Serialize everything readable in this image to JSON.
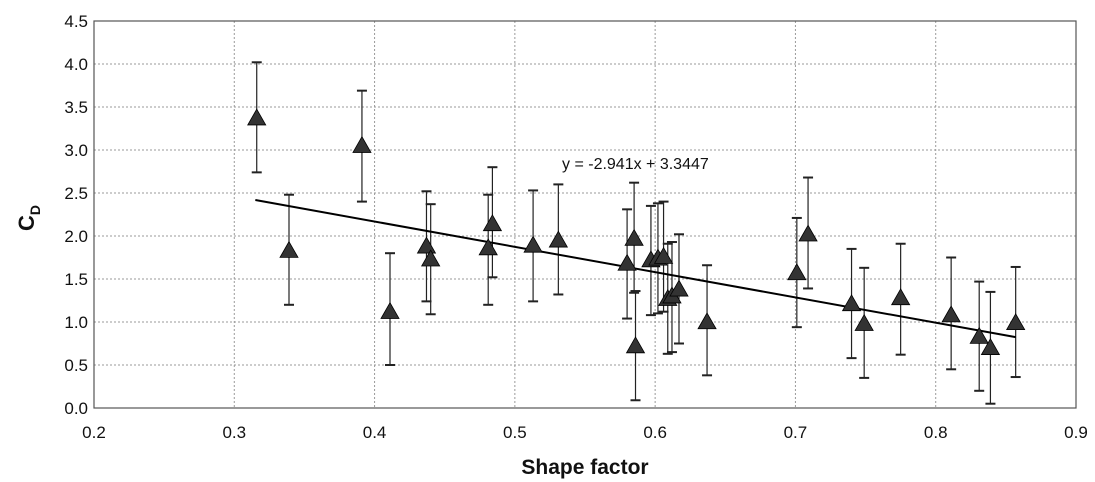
{
  "chart_data": {
    "type": "scatter",
    "xlabel": "Shape factor",
    "ylabel_main": "C",
    "ylabel_sub": "D",
    "xlim": [
      0.2,
      0.9
    ],
    "ylim": [
      0.0,
      4.5
    ],
    "x_ticks": [
      "0.2",
      "0.3",
      "0.4",
      "0.5",
      "0.6",
      "0.7",
      "0.8",
      "0.9"
    ],
    "y_ticks": [
      "0.0",
      "0.5",
      "1.0",
      "1.5",
      "2.0",
      "2.5",
      "3.0",
      "3.5",
      "4.0",
      "4.5"
    ],
    "grid": true,
    "trendline": {
      "slope": -2.941,
      "intercept": 3.3447,
      "x_range": [
        0.315,
        0.857
      ],
      "label": "y = -2.941x + 3.3447"
    },
    "points": [
      {
        "x": 0.316,
        "y": 3.37,
        "low": 2.74,
        "high": 4.02
      },
      {
        "x": 0.339,
        "y": 1.83,
        "low": 1.2,
        "high": 2.48
      },
      {
        "x": 0.391,
        "y": 3.05,
        "low": 2.4,
        "high": 3.69
      },
      {
        "x": 0.411,
        "y": 1.12,
        "low": 0.5,
        "high": 1.8
      },
      {
        "x": 0.437,
        "y": 1.88,
        "low": 1.24,
        "high": 2.52
      },
      {
        "x": 0.44,
        "y": 1.73,
        "low": 1.09,
        "high": 2.37
      },
      {
        "x": 0.481,
        "y": 1.86,
        "low": 1.2,
        "high": 2.48
      },
      {
        "x": 0.484,
        "y": 2.14,
        "low": 1.52,
        "high": 2.8
      },
      {
        "x": 0.513,
        "y": 1.89,
        "low": 1.24,
        "high": 2.53
      },
      {
        "x": 0.531,
        "y": 1.95,
        "low": 1.32,
        "high": 2.6
      },
      {
        "x": 0.58,
        "y": 1.68,
        "low": 1.04,
        "high": 2.31
      },
      {
        "x": 0.585,
        "y": 1.97,
        "low": 1.34,
        "high": 2.62
      },
      {
        "x": 0.586,
        "y": 0.72,
        "low": 0.09,
        "high": 1.36
      },
      {
        "x": 0.597,
        "y": 1.72,
        "low": 1.08,
        "high": 2.35
      },
      {
        "x": 0.602,
        "y": 1.74,
        "low": 1.1,
        "high": 2.38
      },
      {
        "x": 0.606,
        "y": 1.76,
        "low": 1.12,
        "high": 2.4
      },
      {
        "x": 0.609,
        "y": 1.27,
        "low": 0.63,
        "high": 1.91
      },
      {
        "x": 0.612,
        "y": 1.3,
        "low": 0.65,
        "high": 1.93
      },
      {
        "x": 0.617,
        "y": 1.38,
        "low": 0.75,
        "high": 2.02
      },
      {
        "x": 0.637,
        "y": 1.0,
        "low": 0.38,
        "high": 1.66
      },
      {
        "x": 0.701,
        "y": 1.57,
        "low": 0.94,
        "high": 2.21
      },
      {
        "x": 0.709,
        "y": 2.02,
        "low": 1.39,
        "high": 2.68
      },
      {
        "x": 0.74,
        "y": 1.21,
        "low": 0.58,
        "high": 1.85
      },
      {
        "x": 0.749,
        "y": 0.98,
        "low": 0.35,
        "high": 1.63
      },
      {
        "x": 0.775,
        "y": 1.28,
        "low": 0.62,
        "high": 1.91
      },
      {
        "x": 0.811,
        "y": 1.08,
        "low": 0.45,
        "high": 1.75
      },
      {
        "x": 0.831,
        "y": 0.83,
        "low": 0.2,
        "high": 1.47
      },
      {
        "x": 0.839,
        "y": 0.7,
        "low": 0.05,
        "high": 1.35
      },
      {
        "x": 0.857,
        "y": 0.99,
        "low": 0.36,
        "high": 1.64
      }
    ]
  }
}
